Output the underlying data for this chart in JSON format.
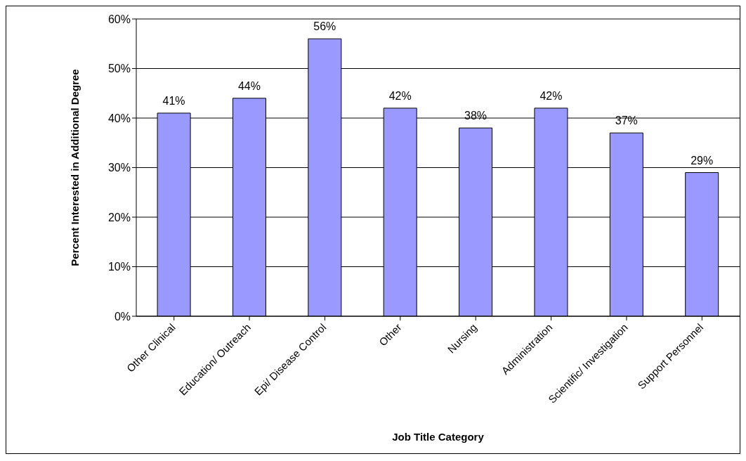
{
  "chart_data": {
    "type": "bar",
    "xlabel": "Job Title Category",
    "ylabel": "Percent Interested in Additional Degree",
    "categories": [
      "Other Clinical",
      "Education/ Outreach",
      "Epi/ Disease Control",
      "Other",
      "Nursing",
      "Administration",
      "Scientific/ Investigation",
      "Support Personnel"
    ],
    "values": [
      41,
      44,
      56,
      42,
      38,
      42,
      37,
      29
    ],
    "value_labels": [
      "41%",
      "44%",
      "56%",
      "42%",
      "38%",
      "42%",
      "37%",
      "29%"
    ],
    "color": "#9999ff",
    "ylim": [
      0,
      60
    ],
    "yticks": [
      {
        "value": 0,
        "label": "0%"
      },
      {
        "value": 10,
        "label": "10%"
      },
      {
        "value": 20,
        "label": "20%"
      },
      {
        "value": 30,
        "label": "30%"
      },
      {
        "value": 40,
        "label": "40%"
      },
      {
        "value": 50,
        "label": "50%"
      },
      {
        "value": 60,
        "label": "60%"
      }
    ],
    "grid": "y",
    "legend": false
  }
}
